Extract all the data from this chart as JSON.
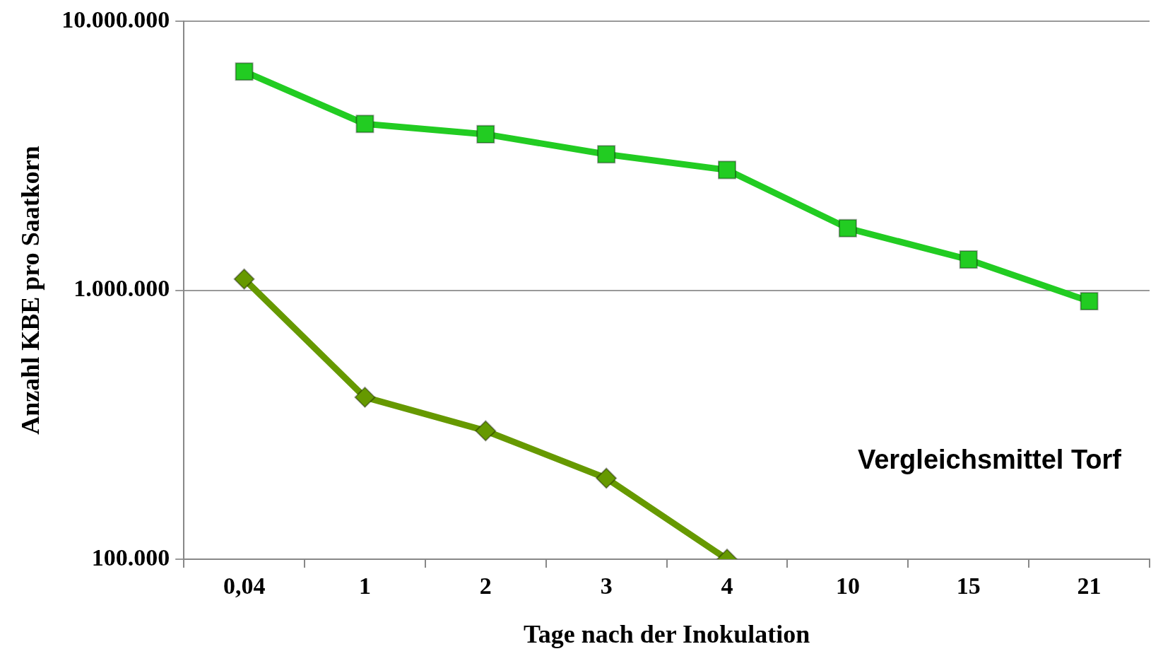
{
  "chart_data": {
    "type": "line",
    "xlabel": "Tage nach der Inokulation",
    "ylabel": "Anzahl KBE pro Saatkorn",
    "categories": [
      "0,04",
      "1",
      "2",
      "3",
      "4",
      "10",
      "15",
      "21"
    ],
    "log": "y",
    "ylim": [
      100000,
      10000000
    ],
    "yticks": [
      {
        "value": 100000,
        "label": "100.000"
      },
      {
        "value": 1000000,
        "label": "1.000.000"
      },
      {
        "value": 10000000,
        "label": "10.000.000"
      }
    ],
    "grid": "y",
    "legend": false,
    "series": [
      {
        "color": "#22cc22",
        "marker": "square",
        "values": [
          6500000,
          4150000,
          3800000,
          3200000,
          2800000,
          1700000,
          1300000,
          910000
        ]
      },
      {
        "name": "Vergleichsmittel Torf",
        "color": "#669900",
        "marker": "diamond",
        "values": [
          1100000,
          400000,
          300000,
          200000,
          100000,
          null,
          null,
          null
        ]
      }
    ]
  }
}
